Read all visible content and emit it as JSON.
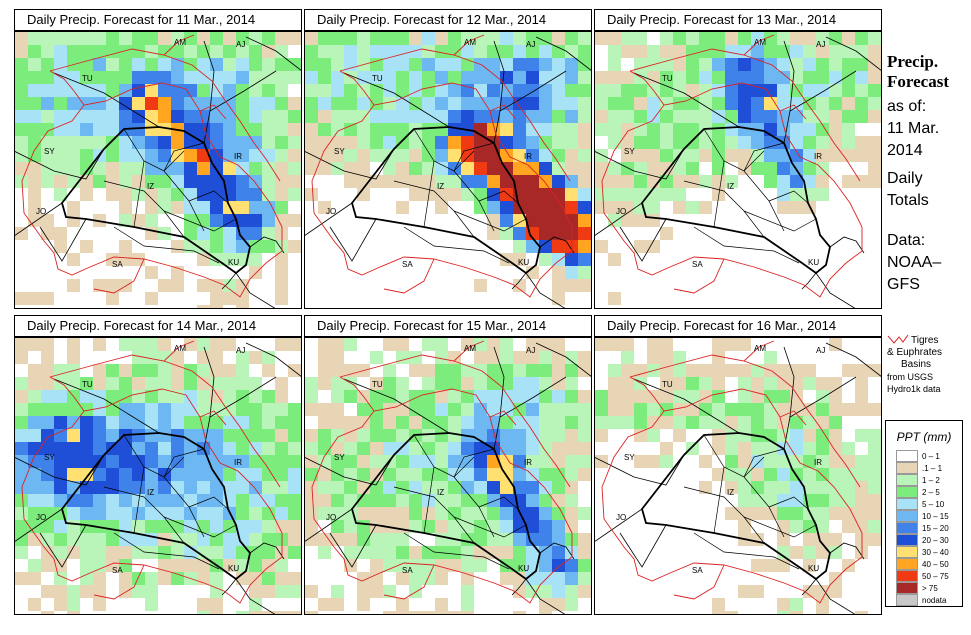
{
  "panels": [
    {
      "title": "Daily Precip. Forecast for  11 Mar., 2014",
      "day": 11
    },
    {
      "title": "Daily Precip. Forecast for  12 Mar., 2014",
      "day": 12
    },
    {
      "title": "Daily Precip. Forecast for  13 Mar., 2014",
      "day": 13
    },
    {
      "title": "Daily Precip. Forecast for  14 Mar., 2014",
      "day": 14
    },
    {
      "title": "Daily Precip. Forecast for  15 Mar., 2014",
      "day": 15
    },
    {
      "title": "Daily Precip. Forecast for  16 Mar., 2014",
      "day": 16
    }
  ],
  "map_labels": {
    "am": "AM",
    "aj": "AJ",
    "tu": "TU",
    "sy": "SY",
    "ir": "IR",
    "iz": "IZ",
    "jo": "JO",
    "sa": "SA",
    "ku": "KU"
  },
  "sidebar": {
    "title_line1": "Precip.",
    "title_line2": "Forecast",
    "asof_line1": "as of:",
    "asof_line2": "11 Mar.",
    "asof_line3": "2014",
    "totals_line1": "Daily",
    "totals_line2": "Totals",
    "data_line1": "Data:",
    "data_line2": "NOAA–",
    "data_line3": "GFS"
  },
  "basin_note": {
    "line1": "Tigres",
    "line2": "& Euphrates",
    "line3": "Basins",
    "line4": "from USGS",
    "line5": "Hydro1k data",
    "line_color": "#dd2222"
  },
  "legend": {
    "title": "PPT (mm)",
    "items": [
      {
        "label": "0 – 1",
        "color": "#ffffff"
      },
      {
        "label": ".1 – 1",
        "color": "#e8d5b5"
      },
      {
        "label": "1 – 2",
        "color": "#b9f5b9"
      },
      {
        "label": "2 – 5",
        "color": "#7cec7c"
      },
      {
        "label": "5 – 10",
        "color": "#a8e2f7"
      },
      {
        "label": "10 – 15",
        "color": "#6db8f2"
      },
      {
        "label": "15 – 20",
        "color": "#3f83ea"
      },
      {
        "label": "20 – 30",
        "color": "#1f4fd6"
      },
      {
        "label": "30 – 40",
        "color": "#ffe070"
      },
      {
        "label": "40 – 50",
        "color": "#ffa520"
      },
      {
        "label": "50 – 75",
        "color": "#f03a14"
      },
      {
        "label": "> 75",
        "color": "#a82828"
      },
      {
        "label": "nodata",
        "color": "#c8c8c8"
      }
    ]
  },
  "colors": {
    "basin": "#dd2222",
    "iraq_border": "#000000",
    "borders": "#000000"
  }
}
